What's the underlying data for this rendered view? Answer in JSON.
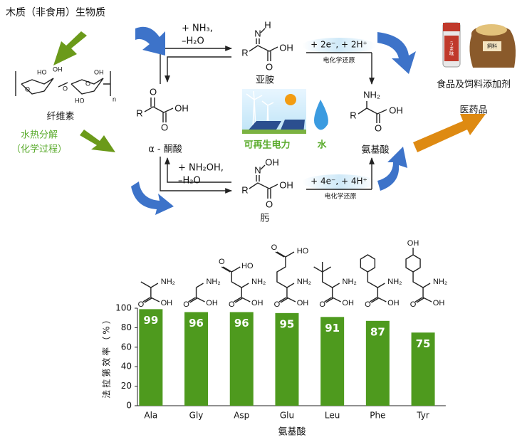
{
  "diagram": {
    "source_title": "木质（非食用）生物质",
    "cellulose_atoms": [
      "HO",
      "OH",
      "O",
      "O",
      "HO",
      "OH",
      "O",
      "n"
    ],
    "cellulose": "纤维素",
    "process_1": "水热分解",
    "process_2": "（化学过程）",
    "keto_acid_atoms": [
      "O",
      "R",
      "OH",
      "O"
    ],
    "keto_acid": "α - 酮酸",
    "reagent_top_1": "+ NH₃,",
    "reagent_top_2": "–H₂O",
    "imine_atoms": [
      "H",
      "N",
      "R",
      "OH",
      "O"
    ],
    "imine": "亚胺",
    "reduction_top": "+ 2e⁻, + 2H⁺",
    "reduction_top_label": "电化学还原",
    "renewable": "可再生电力",
    "water": "水",
    "amino_atoms": [
      "NH₂",
      "R",
      "OH",
      "O"
    ],
    "amino_acid": "氨基酸",
    "reagent_bottom_1": "+ NH₂OH,",
    "reagent_bottom_2": "–H₂O",
    "oxime_atoms": [
      "OH",
      "N",
      "R",
      "OH",
      "O"
    ],
    "oxime": "肟",
    "reduction_bottom": "+ 4e⁻, + 4H⁺",
    "reduction_bottom_label": "电化学还原",
    "product_tags": [
      "うま味",
      "飼料"
    ],
    "product_1": "食品及饲料添加剂",
    "product_2": "医药品"
  },
  "bar_molecules": [
    [
      "NH₂",
      "OH",
      "O"
    ],
    [
      "NH₂",
      "OH",
      "O"
    ],
    [
      "O",
      "HO",
      "NH₂",
      "OH",
      "O"
    ],
    [
      "O",
      "HO",
      "NH₂",
      "OH",
      "O"
    ],
    [
      "NH₂",
      "OH",
      "O"
    ],
    [
      "NH₂",
      "OH",
      "O"
    ],
    [
      "OH",
      "NH₂",
      "OH",
      "O"
    ]
  ],
  "chart_data": {
    "type": "bar",
    "y_label": "法拉第效率（%）",
    "x_label": "氨基酸",
    "categories": [
      "Ala",
      "Gly",
      "Asp",
      "Glu",
      "Leu",
      "Phe",
      "Tyr"
    ],
    "values": [
      99,
      96,
      96,
      95,
      91,
      87,
      75
    ],
    "color": "#4e9a1e",
    "ylim": [
      0,
      100
    ],
    "yticks": [
      0,
      20,
      40,
      60,
      80,
      100
    ]
  }
}
